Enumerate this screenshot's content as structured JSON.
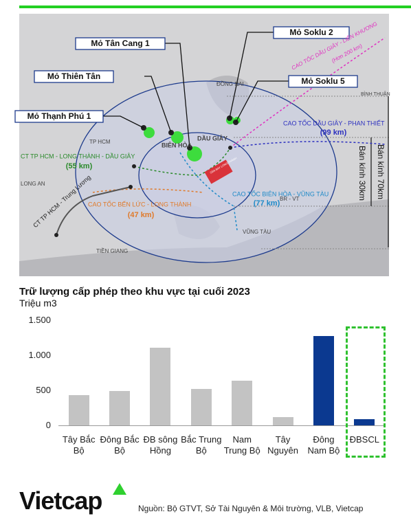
{
  "map": {
    "mines": [
      "Mỏ Soklu 2",
      "Mỏ Tân Cang 1",
      "Mỏ Thiên Tân",
      "Mỏ Soklu 5",
      "Mỏ Thạnh Phú 1"
    ],
    "roads": [
      "CAO TỐC DẦU GIÂY - LIÊN KHƯƠNG",
      "(Hơn 200 km)",
      "CAO TỐC DẦU GIÂY - PHAN THIẾT",
      "(99 km)",
      "CT TP HCM - LONG THÀNH - DẦU GIÂY",
      "(55 km)",
      "CAO TỐC BIÊN HÒA - VŨNG TÀU",
      "(77 km)",
      "CAO TỐC BẾN LỨC - LONG THÀNH",
      "(47 km)",
      "CT TP HCM - Trung Lương"
    ],
    "places": [
      "ĐỒNG NAI",
      "BÌNH THUẬN",
      "TP HCM",
      "BIÊN HÒA",
      "DẦU GIÂY",
      "LONG AN",
      "BR - VT",
      "VŨNG TÀU",
      "TIỀN GIANG",
      "SÂN BAY LONG THÀNH"
    ],
    "radii": [
      "Bán kính 70km",
      "Bán kính 30km"
    ]
  },
  "chart_data": {
    "type": "bar",
    "title": "Trữ lượng cấp phép theo khu vực tại cuối 2023",
    "y_label": "Triệu m3",
    "categories": [
      "Tây Bắc Bộ",
      "Đông Bắc Bộ",
      "ĐB sông Hồng",
      "Bắc Trung Bộ",
      "Nam Trung Bộ",
      "Tây Nguyên",
      "Đông Nam Bộ",
      "ĐBSCL"
    ],
    "values": [
      430,
      490,
      1110,
      515,
      640,
      120,
      1270,
      85
    ],
    "colors": [
      "#c3c3c3",
      "#c3c3c3",
      "#c3c3c3",
      "#c3c3c3",
      "#c3c3c3",
      "#c3c3c3",
      "#0b3990",
      "#0b3990"
    ],
    "ylim": [
      0,
      1500
    ],
    "yticks": [
      0,
      500,
      {
        "value": 1000,
        "label": "1.000"
      },
      {
        "value": 1500,
        "label": "1.500"
      }
    ]
  },
  "footer": {
    "logo": "Vietcap",
    "source": "Nguồn: Bộ GTVT, Sở Tài Nguyên & Môi trường, VLB, Vietcap"
  }
}
